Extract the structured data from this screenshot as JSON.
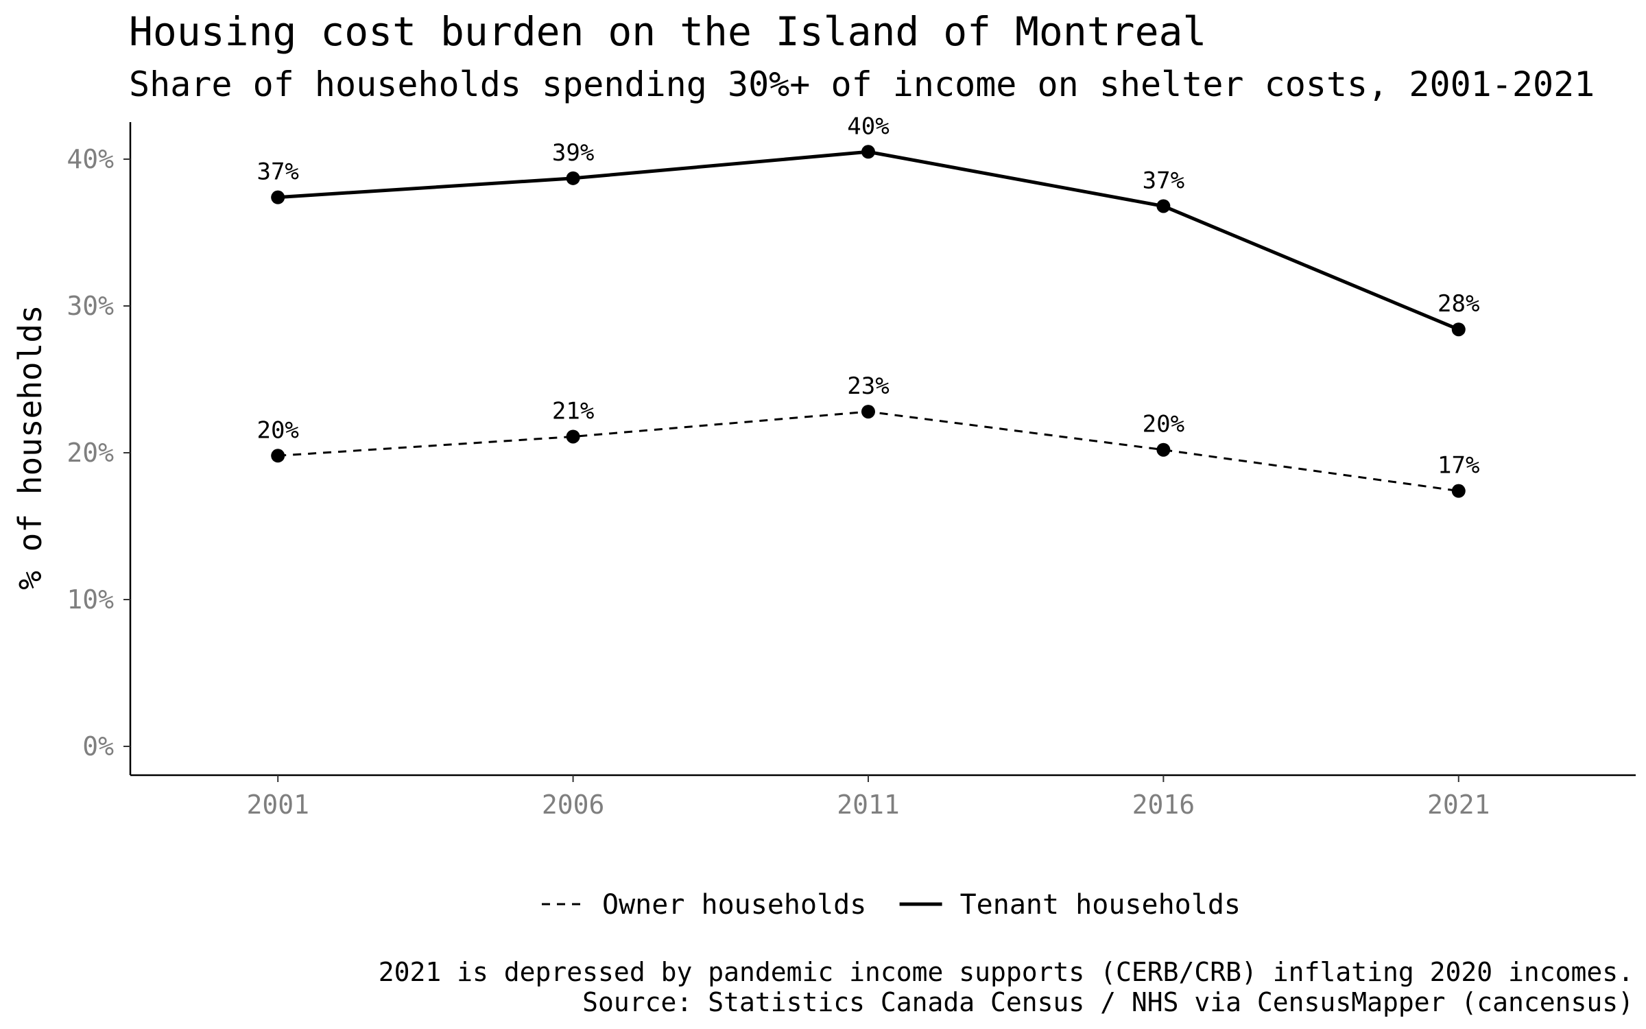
{
  "chart_data": {
    "type": "line",
    "title": "Housing cost burden on the Island of Montreal",
    "subtitle": "Share of households spending 30%+ of income on shelter costs, 2001-2021",
    "xlabel": "",
    "ylabel": "% of households",
    "x": [
      2001,
      2006,
      2011,
      2016,
      2021
    ],
    "x_tick_labels": [
      "2001",
      "2006",
      "2011",
      "2016",
      "2021"
    ],
    "ylim": [
      0,
      42
    ],
    "y_ticks": [
      0,
      10,
      20,
      30,
      40
    ],
    "y_tick_labels": [
      "0%",
      "10%",
      "20%",
      "30%",
      "40%"
    ],
    "grid": false,
    "legend_position": "bottom",
    "series": [
      {
        "name": "Owner households",
        "line_style": "dashed",
        "color": "#000000",
        "values": [
          19.8,
          21.1,
          22.8,
          20.2,
          17.4
        ],
        "labels": [
          "20%",
          "21%",
          "23%",
          "20%",
          "17%"
        ]
      },
      {
        "name": "Tenant households",
        "line_style": "solid",
        "color": "#000000",
        "values": [
          37.4,
          38.7,
          40.5,
          36.8,
          28.4
        ],
        "labels": [
          "37%",
          "39%",
          "40%",
          "37%",
          "28%"
        ]
      }
    ],
    "caption": [
      "2021 is depressed by pandemic income supports (CERB/CRB) inflating 2020 incomes.",
      "Source: Statistics Canada Census / NHS via CensusMapper (cancensus)"
    ]
  }
}
